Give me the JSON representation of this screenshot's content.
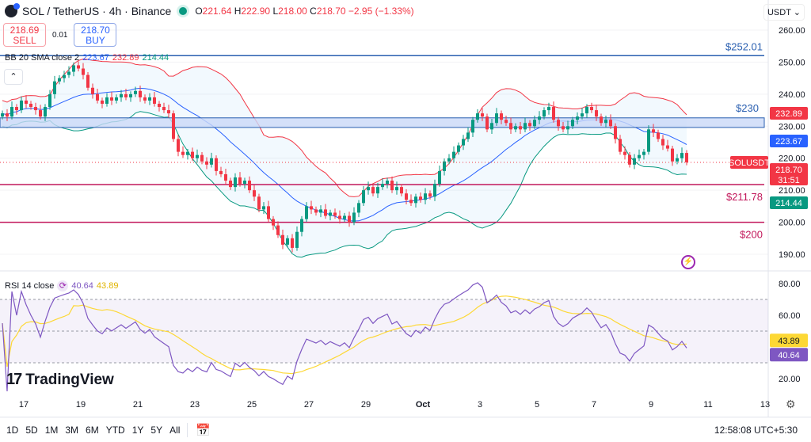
{
  "header": {
    "symbol": "SOL / TetherUS · 4h · Binance",
    "o_label": "O",
    "o": "221.64",
    "h_label": "H",
    "h": "222.90",
    "l_label": "L",
    "l": "218.00",
    "c_label": "C",
    "c": "218.70",
    "change": "−2.95 (−1.33%)"
  },
  "trade": {
    "sell_price": "218.69",
    "sell_label": "SELL",
    "spread": "0.01",
    "buy_price": "218.70",
    "buy_label": "BUY"
  },
  "currency": "USDT ⌄",
  "bb_legend": {
    "name": "BB 20 SMA close 2",
    "basis": "223.67",
    "upper": "232.89",
    "lower": "214.44"
  },
  "rsi_legend": {
    "name": "RSI 14 close",
    "rsi": "40.64",
    "ma": "43.89"
  },
  "collapse_icon": "chevron-up-icon",
  "brand": "TradingView",
  "ranges": [
    "1D",
    "5D",
    "1M",
    "3M",
    "6M",
    "YTD",
    "1Y",
    "5Y",
    "All"
  ],
  "clock": "12:58:08 UTC+5:30",
  "colors": {
    "up": "#089981",
    "down": "#f23645",
    "bb_upper": "#f23645",
    "bb_basis": "#2962ff",
    "bb_lower": "#089981",
    "rsi": "#7e57c2",
    "rsi_ma": "#fdd835",
    "zone": "#c9d8f8"
  },
  "chart_data": {
    "type": "candlestick",
    "symbol": "SOLUSDT",
    "interval": "4h",
    "price_ticks": [
      "190.00",
      "200.00",
      "210.00",
      "220.00",
      "230.00",
      "240.00",
      "250.00",
      "260.00"
    ],
    "ylim": [
      187,
      264
    ],
    "x_ticks": [
      "17",
      "19",
      "21",
      "23",
      "25",
      "27",
      "29",
      "Oct",
      "3",
      "5",
      "7",
      "9",
      "11",
      "13"
    ],
    "closes": [
      234,
      233,
      236,
      235,
      238,
      237,
      236,
      235,
      233,
      236,
      240,
      244,
      245,
      246,
      247,
      249,
      248,
      246,
      242,
      240,
      238,
      237,
      239,
      238,
      239,
      240,
      239,
      240,
      241,
      239,
      238,
      239,
      237,
      236,
      235,
      234,
      226,
      222,
      221,
      222,
      220,
      221,
      219,
      218,
      220,
      216,
      215,
      213,
      211,
      214,
      212,
      213,
      210,
      208,
      204,
      205,
      201,
      199,
      196,
      193,
      195,
      192,
      197,
      201,
      205,
      204,
      203,
      204,
      202,
      203,
      202,
      201,
      202,
      200,
      203,
      206,
      210,
      211,
      209,
      211,
      212,
      213,
      210,
      211,
      209,
      207,
      206,
      208,
      207,
      209,
      208,
      212,
      216,
      219,
      220,
      222,
      224,
      226,
      228,
      232,
      234,
      233,
      229,
      231,
      234,
      232,
      231,
      229,
      230,
      229,
      231,
      230,
      232,
      233,
      235,
      236,
      232,
      230,
      229,
      230,
      232,
      233,
      234,
      236,
      235,
      233,
      231,
      232,
      230,
      226,
      222,
      221,
      218,
      220,
      221,
      222,
      229,
      228,
      226,
      224,
      223,
      219,
      220,
      221.64,
      218.7
    ],
    "levels": [
      {
        "price": 252.01,
        "label": "$252.01",
        "color": "#2a5fb0"
      },
      {
        "price": 211.78,
        "label": "$211.78",
        "color": "#c2185b"
      },
      {
        "price": 200,
        "label": "$200",
        "color": "#c2185b"
      }
    ],
    "zone": {
      "from": 229.6,
      "to": 232.6,
      "label": "$230"
    },
    "last_label": "SOLUSDT",
    "last_price": "218.70",
    "countdown": "31:51",
    "bb_badges": {
      "upper": "232.89",
      "basis": "223.67",
      "lower": "214.44"
    },
    "rsi": {
      "ticks": [
        "20.00",
        "60.00",
        "80.00"
      ],
      "ylim": [
        10,
        85
      ],
      "bands": [
        30,
        50,
        70
      ],
      "badge_rsi": "40.64",
      "badge_ma": "43.89"
    }
  }
}
